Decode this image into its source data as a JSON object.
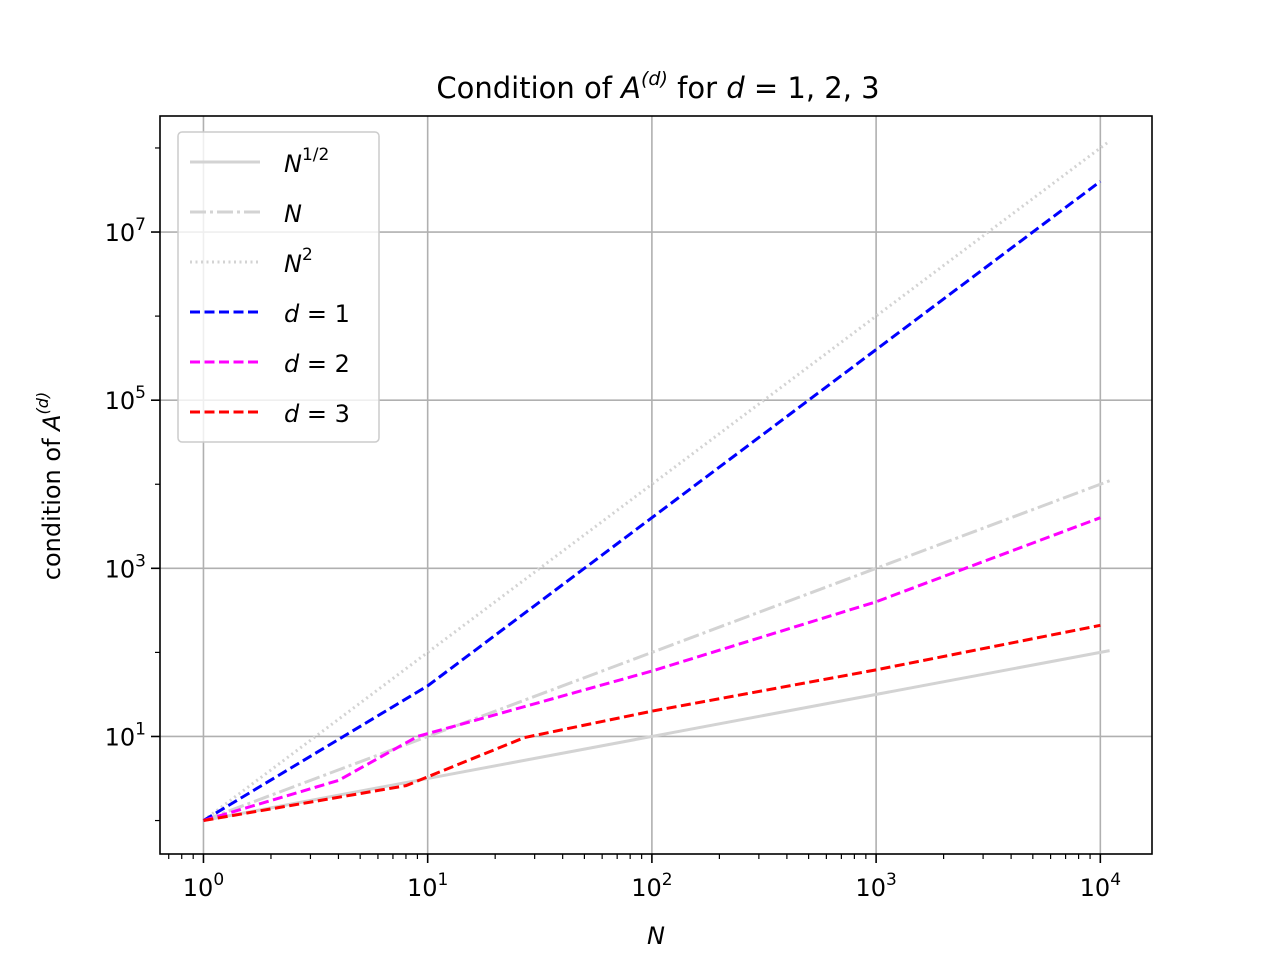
{
  "chart_data": {
    "type": "line",
    "title": {
      "prefix": "Condition of ",
      "mat_base": "A",
      "mat_sup": "(d)",
      "middle": " for ",
      "var": "d",
      "rel": " = 1, 2, 3"
    },
    "xlabel": "N",
    "ylabel": {
      "prefix": "condition of ",
      "base": "A",
      "sup": "(d)"
    },
    "x_scale": "log",
    "y_scale": "log",
    "xlim": [
      0.64,
      17000
    ],
    "ylim": [
      0.4,
      240000000
    ],
    "grid": true,
    "legend_position": "upper-left",
    "x_ticks": [
      {
        "value": 1,
        "base": "10",
        "exp": "0"
      },
      {
        "value": 10,
        "base": "10",
        "exp": "1"
      },
      {
        "value": 100,
        "base": "10",
        "exp": "2"
      },
      {
        "value": 1000,
        "base": "10",
        "exp": "3"
      },
      {
        "value": 10000,
        "base": "10",
        "exp": "4"
      }
    ],
    "y_ticks": [
      {
        "value": 10,
        "base": "10",
        "exp": "1"
      },
      {
        "value": 1000,
        "base": "10",
        "exp": "3"
      },
      {
        "value": 100000,
        "base": "10",
        "exp": "5"
      },
      {
        "value": 10000000,
        "base": "10",
        "exp": "7"
      }
    ],
    "series": [
      {
        "name": "N^1/2",
        "label_base": "N",
        "label_sup": "1/2",
        "color": "#d3d3d3",
        "dash": "solid",
        "x": [
          1,
          11000
        ],
        "y": [
          1,
          104.88
        ]
      },
      {
        "name": "N",
        "label_base": "N",
        "label_sup": "",
        "color": "#d3d3d3",
        "dash": "dashdot",
        "x": [
          1,
          11000
        ],
        "y": [
          1,
          11000
        ]
      },
      {
        "name": "N^2",
        "label_base": "N",
        "label_sup": "2",
        "color": "#d3d3d3",
        "dash": "dotted",
        "x": [
          1,
          11000
        ],
        "y": [
          1,
          121000000
        ]
      },
      {
        "name": "d = 1",
        "label_var": "d",
        "label_rel": " = 1",
        "color": "#0000ff",
        "dash": "dashed",
        "x": [
          1,
          10,
          100,
          1000,
          10000
        ],
        "y": [
          1,
          40,
          4000,
          400000,
          40000000
        ]
      },
      {
        "name": "d = 2",
        "label_var": "d",
        "label_rel": " = 2",
        "color": "#ff00ff",
        "dash": "dashed",
        "x": [
          1,
          4,
          9,
          100,
          1000,
          10000
        ],
        "y": [
          1,
          3,
          10,
          60,
          400,
          4000
        ]
      },
      {
        "name": "d = 3",
        "label_var": "d",
        "label_rel": " = 3",
        "color": "#ff0000",
        "dash": "dashed",
        "x": [
          1,
          8,
          27,
          100,
          1000,
          10000
        ],
        "y": [
          1,
          2.6,
          9.7,
          20,
          62,
          210
        ]
      }
    ]
  }
}
